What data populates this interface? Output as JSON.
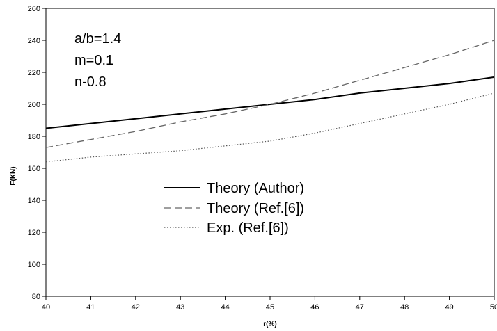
{
  "chart_data": {
    "type": "line",
    "xlabel": "r(%)",
    "ylabel": "F(KN)",
    "xlim": [
      40,
      50
    ],
    "ylim": [
      80,
      260
    ],
    "xticks": [
      40,
      41,
      42,
      43,
      44,
      45,
      46,
      47,
      48,
      49,
      50
    ],
    "yticks": [
      80,
      100,
      120,
      140,
      160,
      180,
      200,
      220,
      240,
      260
    ],
    "grid": false,
    "legend_position": "center-left",
    "annotations": [
      "a/b=1.4",
      "m=0.1",
      "n-0.8"
    ],
    "series": [
      {
        "name": "Theory (Author)",
        "style": "solid",
        "color": "#000000",
        "x": [
          40,
          41,
          42,
          43,
          44,
          45,
          46,
          47,
          48,
          49,
          50
        ],
        "y": [
          185,
          188,
          191,
          194,
          197,
          200,
          203,
          207,
          210,
          213,
          217
        ]
      },
      {
        "name": "Theory (Ref.[6])",
        "style": "dashed",
        "color": "#666666",
        "x": [
          40,
          41,
          42,
          43,
          44,
          45,
          46,
          47,
          48,
          49,
          50
        ],
        "y": [
          173,
          178,
          183,
          189,
          194,
          200,
          207,
          215,
          223,
          231,
          240
        ]
      },
      {
        "name": "Exp. (Ref.[6])",
        "style": "dotted",
        "color": "#555555",
        "x": [
          40,
          41,
          42,
          43,
          44,
          45,
          46,
          47,
          48,
          49,
          50
        ],
        "y": [
          164,
          167,
          169,
          171,
          174,
          177,
          182,
          188,
          194,
          200,
          207
        ]
      }
    ]
  }
}
